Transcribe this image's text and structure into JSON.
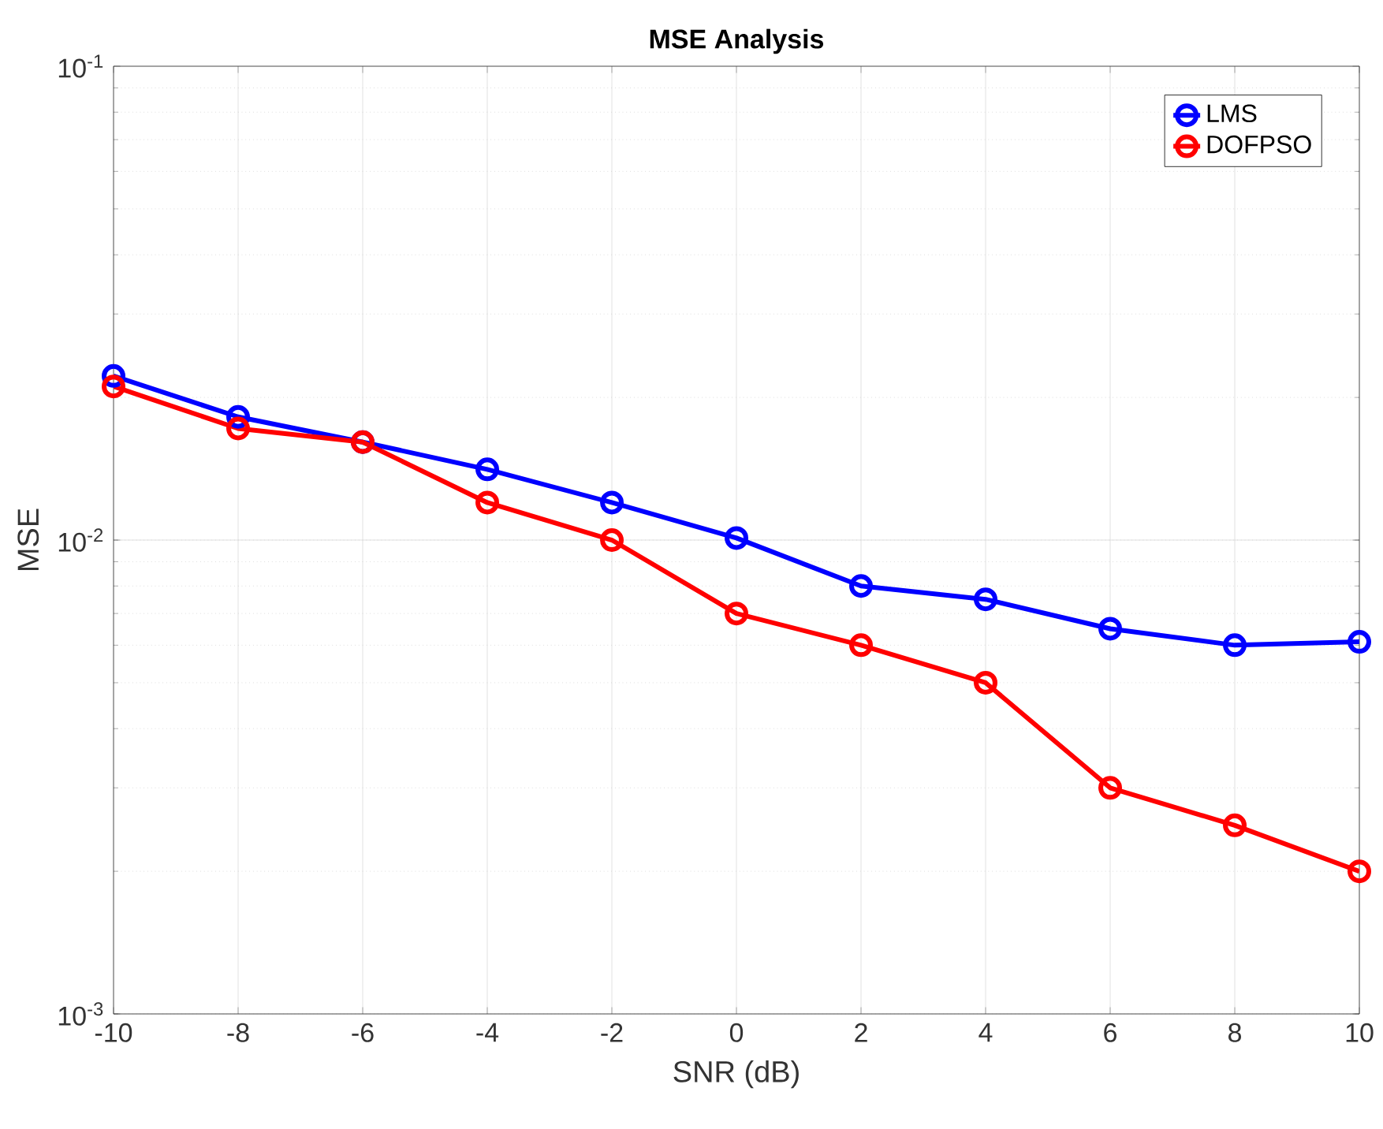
{
  "chart_data": {
    "type": "line",
    "title": "MSE Analysis",
    "xlabel": "SNR (dB)",
    "ylabel": "MSE",
    "x": [
      -10,
      -8,
      -6,
      -4,
      -2,
      0,
      2,
      4,
      6,
      8,
      10
    ],
    "series": [
      {
        "name": "LMS",
        "color": "#0000ff",
        "values": [
          0.0222,
          0.0182,
          0.0161,
          0.0141,
          0.012,
          0.0101,
          0.008,
          0.0075,
          0.0065,
          0.006,
          0.0061
        ]
      },
      {
        "name": "DOFPSO",
        "color": "#ff0000",
        "values": [
          0.0211,
          0.0172,
          0.0161,
          0.012,
          0.01,
          0.007,
          0.006,
          0.005,
          0.003,
          0.0025,
          0.002
        ]
      }
    ],
    "xlim": [
      -10,
      10
    ],
    "xticks": [
      -10,
      -8,
      -6,
      -4,
      -2,
      0,
      2,
      4,
      6,
      8,
      10
    ],
    "ylim": [
      0.001,
      0.1
    ],
    "yticks": [
      {
        "value": 0.001,
        "label": "10$^{-3}$"
      },
      {
        "value": 0.01,
        "label": "10$^{-2}$"
      },
      {
        "value": 0.1,
        "label": "10$^{-1}$"
      }
    ],
    "log": "y",
    "grid": true,
    "legend": "top right",
    "marker": "circle",
    "line_style": "solid"
  }
}
